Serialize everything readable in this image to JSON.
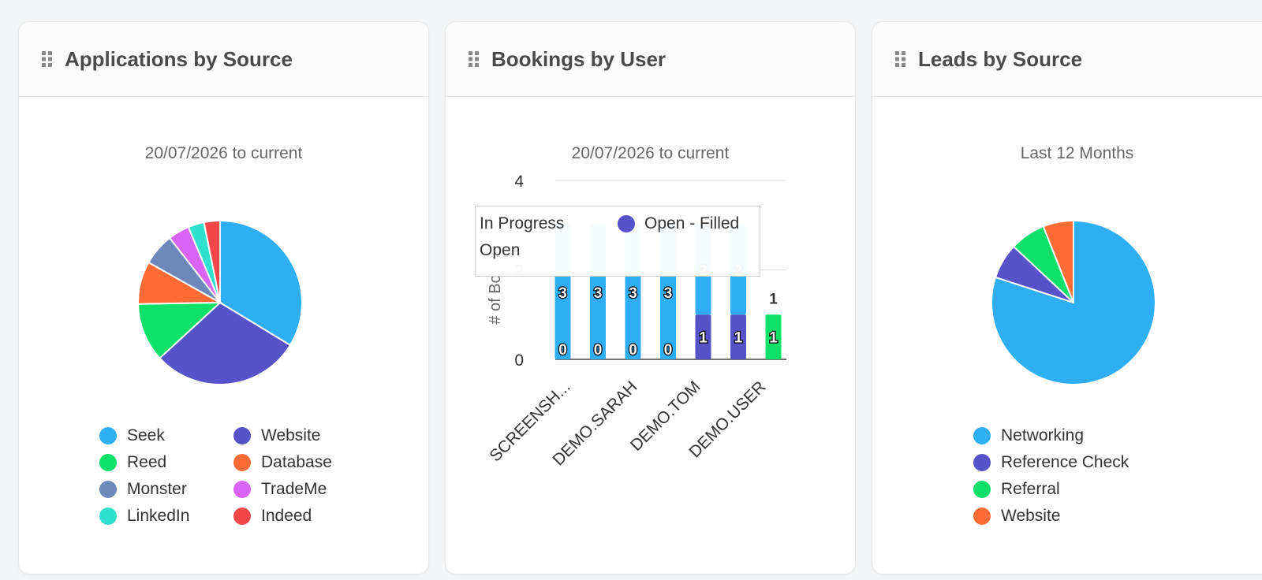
{
  "cards": [
    {
      "title": "Applications by Source",
      "subtitle": "20/07/2026 to current",
      "legend": [
        {
          "label": "Seek",
          "color": "#2eaef5"
        },
        {
          "label": "Website",
          "color": "#5652c8"
        },
        {
          "label": "Reed",
          "color": "#0ee06a"
        },
        {
          "label": "Database",
          "color": "#ff6b35"
        },
        {
          "label": "Monster",
          "color": "#6d89ba"
        },
        {
          "label": "TradeMe",
          "color": "#d865f5"
        },
        {
          "label": "LinkedIn",
          "color": "#2fe0cc"
        },
        {
          "label": "Indeed",
          "color": "#f4474a"
        }
      ]
    },
    {
      "title": "Bookings by User",
      "subtitle": "20/07/2026 to current",
      "tooltip": {
        "items": [
          {
            "label": "In Progress",
            "color": ""
          },
          {
            "label": "Open - Filled",
            "color": "#5652c8"
          },
          {
            "label": "Open",
            "color": ""
          }
        ]
      }
    },
    {
      "title": "Leads by Source",
      "subtitle": "Last 12 Months",
      "legend": [
        {
          "label": "Networking",
          "color": "#2eaef5"
        },
        {
          "label": "Reference Check",
          "color": "#5652c8"
        },
        {
          "label": "Referral",
          "color": "#0ee06a"
        },
        {
          "label": "Website",
          "color": "#ff6b35"
        }
      ]
    }
  ],
  "chart_data": [
    {
      "type": "pie",
      "title": "Applications by Source",
      "subtitle": "20/07/2026 to current",
      "slices": [
        {
          "label": "Seek",
          "value": 32,
          "color": "#2eaef5"
        },
        {
          "label": "Website",
          "value": 28,
          "color": "#5652c8"
        },
        {
          "label": "Reed",
          "value": 11,
          "color": "#0ee06a"
        },
        {
          "label": "Database",
          "value": 8,
          "color": "#ff6b35"
        },
        {
          "label": "Monster",
          "value": 6,
          "color": "#6d89ba"
        },
        {
          "label": "TradeMe",
          "value": 4,
          "color": "#d865f5"
        },
        {
          "label": "LinkedIn",
          "value": 3,
          "color": "#2fe0cc"
        },
        {
          "label": "Indeed",
          "value": 3,
          "color": "#f4474a"
        }
      ]
    },
    {
      "type": "bar",
      "stacked": true,
      "title": "Bookings by User",
      "subtitle": "20/07/2026 to current",
      "ylabel": "# of Bo",
      "ylim": [
        0,
        4
      ],
      "yticks": [
        0,
        2,
        4
      ],
      "xtick_labels": [
        "SCREENSH...",
        "DEMO.SARAH",
        "DEMO.TOM",
        "DEMO.USER"
      ],
      "series": [
        {
          "name": "Open - Filled",
          "color": "#5652c8",
          "values": [
            0,
            0,
            0,
            0,
            1,
            1,
            0
          ]
        },
        {
          "name": "Open",
          "color": "#0ee06a",
          "values": [
            0,
            0,
            0,
            0,
            0,
            0,
            1
          ]
        },
        {
          "name": "In Progress",
          "color": "#2eaef5",
          "values": [
            3,
            3,
            3,
            3,
            2,
            2,
            0
          ]
        }
      ],
      "bar_labels": [
        {
          "bar": 0,
          "series": "Open - Filled",
          "text": "0"
        },
        {
          "bar": 1,
          "series": "Open - Filled",
          "text": "0"
        },
        {
          "bar": 2,
          "series": "Open - Filled",
          "text": "0"
        },
        {
          "bar": 3,
          "series": "Open - Filled",
          "text": "0"
        },
        {
          "bar": 4,
          "series": "Open - Filled",
          "text": "1"
        },
        {
          "bar": 5,
          "series": "Open - Filled",
          "text": "1"
        },
        {
          "bar": 6,
          "series": "Open",
          "text": "1"
        },
        {
          "bar": 0,
          "series": "In Progress",
          "text": "3"
        },
        {
          "bar": 1,
          "series": "In Progress",
          "text": "3"
        },
        {
          "bar": 2,
          "series": "In Progress",
          "text": "3"
        },
        {
          "bar": 3,
          "series": "In Progress",
          "text": "3"
        },
        {
          "bar": 4,
          "series": "In Progress",
          "text": "2"
        },
        {
          "bar": 5,
          "series": "In Progress",
          "text": "2"
        }
      ],
      "totals": [
        {
          "bar": 6,
          "text": "1"
        }
      ]
    },
    {
      "type": "pie",
      "title": "Leads by Source",
      "subtitle": "Last 12 Months",
      "slices": [
        {
          "label": "Networking",
          "value": 80,
          "color": "#2eaef5"
        },
        {
          "label": "Reference Check",
          "value": 7,
          "color": "#5652c8"
        },
        {
          "label": "Referral",
          "value": 7,
          "color": "#0ee06a"
        },
        {
          "label": "Website",
          "value": 6,
          "color": "#ff6b35"
        }
      ]
    }
  ]
}
